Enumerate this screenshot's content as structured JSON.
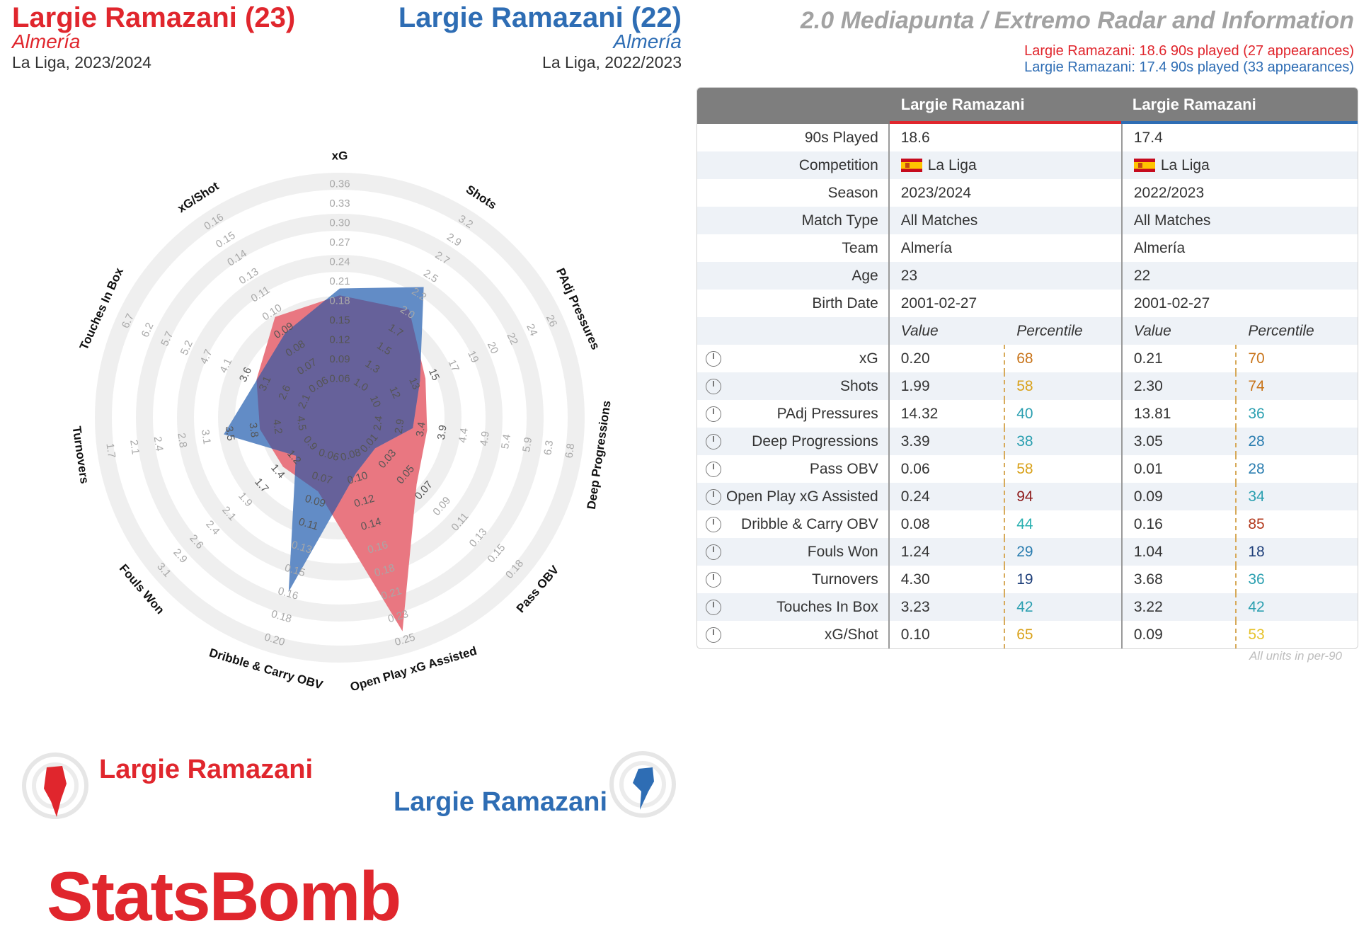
{
  "header": {
    "left": {
      "name": "Largie Ramazani (23)",
      "team": "Almería",
      "competition": "La Liga, 2023/2024"
    },
    "right": {
      "name": "Largie Ramazani (22)",
      "team": "Almería",
      "competition": "La Liga, 2022/2023"
    },
    "title": "2.0 Mediapunta / Extremo Radar and Information",
    "played": [
      "Largie Ramazani: 18.6 90s played (27 appearances)",
      "Largie Ramazani: 17.4 90s played (33 appearances)"
    ]
  },
  "colors": {
    "player1": "#e0262d",
    "player2": "#2e6db4",
    "fill1": "#e8707a",
    "fill2": "#5a86c3",
    "overlap": "#66619a"
  },
  "table": {
    "col_headers": [
      "Largie Ramazani",
      "Largie Ramazani"
    ],
    "info_rows": [
      {
        "label": "90s Played",
        "v1": "18.6",
        "v2": "17.4"
      },
      {
        "label": "Competition",
        "v1": "La Liga",
        "v2": "La Liga",
        "flag": "spain-flag-icon"
      },
      {
        "label": "Season",
        "v1": "2023/2024",
        "v2": "2022/2023"
      },
      {
        "label": "Match Type",
        "v1": "All Matches",
        "v2": "All Matches"
      },
      {
        "label": "Team",
        "v1": "Almería",
        "v2": "Almería"
      },
      {
        "label": "Age",
        "v1": "23",
        "v2": "22"
      },
      {
        "label": "Birth Date",
        "v1": "2001-02-27",
        "v2": "2001-02-27"
      }
    ],
    "sub_headers": {
      "value": "Value",
      "percentile": "Percentile"
    },
    "metric_rows": [
      {
        "label": "xG",
        "v1": "0.20",
        "p1": "68",
        "c1": "#c8741a",
        "v2": "0.21",
        "p2": "70",
        "c2": "#c8741a"
      },
      {
        "label": "Shots",
        "v1": "1.99",
        "p1": "58",
        "c1": "#d9a21b",
        "v2": "2.30",
        "p2": "74",
        "c2": "#c8741a"
      },
      {
        "label": "PAdj Pressures",
        "v1": "14.32",
        "p1": "40",
        "c1": "#2a9fb0",
        "v2": "13.81",
        "p2": "36",
        "c2": "#2a9fb0"
      },
      {
        "label": "Deep Progressions",
        "v1": "3.39",
        "p1": "38",
        "c1": "#2a9fb0",
        "v2": "3.05",
        "p2": "28",
        "c2": "#2a7db0"
      },
      {
        "label": "Pass OBV",
        "v1": "0.06",
        "p1": "58",
        "c1": "#d9a21b",
        "v2": "0.01",
        "p2": "28",
        "c2": "#2a7db0"
      },
      {
        "label": "Open Play xG Assisted",
        "v1": "0.24",
        "p1": "94",
        "c1": "#8e1b1b",
        "v2": "0.09",
        "p2": "34",
        "c2": "#2a9fb0"
      },
      {
        "label": "Dribble & Carry OBV",
        "v1": "0.08",
        "p1": "44",
        "c1": "#2ab0b0",
        "v2": "0.16",
        "p2": "85",
        "c2": "#b33a1e"
      },
      {
        "label": "Fouls Won",
        "v1": "1.24",
        "p1": "29",
        "c1": "#2a7db0",
        "v2": "1.04",
        "p2": "18",
        "c2": "#1e3f7a"
      },
      {
        "label": "Turnovers",
        "v1": "4.30",
        "p1": "19",
        "c1": "#1e3f7a",
        "v2": "3.68",
        "p2": "36",
        "c2": "#2a9fb0"
      },
      {
        "label": "Touches In Box",
        "v1": "3.23",
        "p1": "42",
        "c1": "#2a9fb0",
        "v2": "3.22",
        "p2": "42",
        "c2": "#2a9fb0"
      },
      {
        "label": "xG/Shot",
        "v1": "0.10",
        "p1": "65",
        "c1": "#d9a21b",
        "v2": "0.09",
        "p2": "53",
        "c2": "#e6c22a"
      }
    ],
    "footnote": "All units in per-90"
  },
  "legend": {
    "player1": "Largie Ramazani",
    "player2": "Largie Ramazani"
  },
  "logo": "StatsBomb",
  "chart_data": {
    "type": "radar",
    "axes": [
      {
        "label": "xG",
        "ticks": [
          "0.06",
          "0.09",
          "0.12",
          "0.15",
          "0.18",
          "0.21",
          "0.24",
          "0.27",
          "0.30",
          "0.33",
          "0.36"
        ],
        "range": [
          0.06,
          0.36
        ],
        "inverted": false
      },
      {
        "label": "Shots",
        "ticks": [
          "1.0",
          "1.3",
          "1.5",
          "1.7",
          "2.0",
          "2.2",
          "2.5",
          "2.7",
          "2.9",
          "3.2"
        ],
        "range": [
          0.8,
          3.2
        ],
        "inverted": false
      },
      {
        "label": "PAdj Pressures",
        "ticks": [
          "10",
          "12",
          "13",
          "15",
          "17",
          "19",
          "20",
          "22",
          "24",
          "26"
        ],
        "range": [
          8.5,
          26
        ],
        "inverted": false
      },
      {
        "label": "Deep Progressions",
        "ticks": [
          "2.4",
          "2.9",
          "3.4",
          "3.9",
          "4.4",
          "4.9",
          "5.4",
          "5.9",
          "6.3",
          "6.8"
        ],
        "range": [
          1.9,
          6.8
        ],
        "inverted": false
      },
      {
        "label": "Pass OBV",
        "ticks": [
          "0.01",
          "0.03",
          "0.05",
          "0.07",
          "0.09",
          "0.11",
          "0.13",
          "0.15",
          "0.18"
        ],
        "range": [
          -0.01,
          0.18
        ],
        "inverted": false
      },
      {
        "label": "Open Play xG Assisted",
        "ticks": [
          "0.08",
          "0.10",
          "0.12",
          "0.14",
          "0.16",
          "0.18",
          "0.21",
          "0.23",
          "0.25"
        ],
        "range": [
          0.06,
          0.25
        ],
        "inverted": false
      },
      {
        "label": "Dribble & Carry OBV",
        "ticks": [
          "0.06",
          "0.07",
          "0.09",
          "0.11",
          "0.13",
          "0.15",
          "0.16",
          "0.18",
          "0.20"
        ],
        "range": [
          0.04,
          0.2
        ],
        "inverted": false
      },
      {
        "label": "Fouls Won",
        "ticks": [
          "0.9",
          "1.2",
          "1.4",
          "1.7",
          "1.9",
          "2.1",
          "2.4",
          "2.6",
          "2.9",
          "3.1"
        ],
        "range": [
          0.65,
          3.1
        ],
        "inverted": false
      },
      {
        "label": "Turnovers",
        "ticks": [
          "4.5",
          "4.2",
          "3.8",
          "3.5",
          "3.1",
          "2.8",
          "2.4",
          "2.1",
          "1.7"
        ],
        "range": [
          5.25,
          1.7
        ],
        "inverted": true
      },
      {
        "label": "Touches In Box",
        "ticks": [
          "2.1",
          "2.6",
          "3.1",
          "3.6",
          "4.1",
          "4.7",
          "5.2",
          "5.7",
          "6.2",
          "6.7"
        ],
        "range": [
          1.6,
          6.7
        ],
        "inverted": false
      },
      {
        "label": "xG/Shot",
        "ticks": [
          "0.06",
          "0.07",
          "0.08",
          "0.09",
          "0.10",
          "0.11",
          "0.13",
          "0.14",
          "0.15",
          "0.16"
        ],
        "range": [
          0.05,
          0.16
        ],
        "inverted": false
      }
    ],
    "series": [
      {
        "name": "Largie Ramazani",
        "season": "2023/2024",
        "values": [
          0.2,
          1.99,
          14.32,
          3.39,
          0.06,
          0.24,
          0.08,
          1.24,
          4.3,
          3.23,
          0.1
        ]
      },
      {
        "name": "Largie Ramazani",
        "season": "2022/2023",
        "values": [
          0.21,
          2.3,
          13.81,
          3.05,
          0.01,
          0.09,
          0.16,
          1.04,
          3.68,
          3.22,
          0.09
        ]
      }
    ]
  }
}
